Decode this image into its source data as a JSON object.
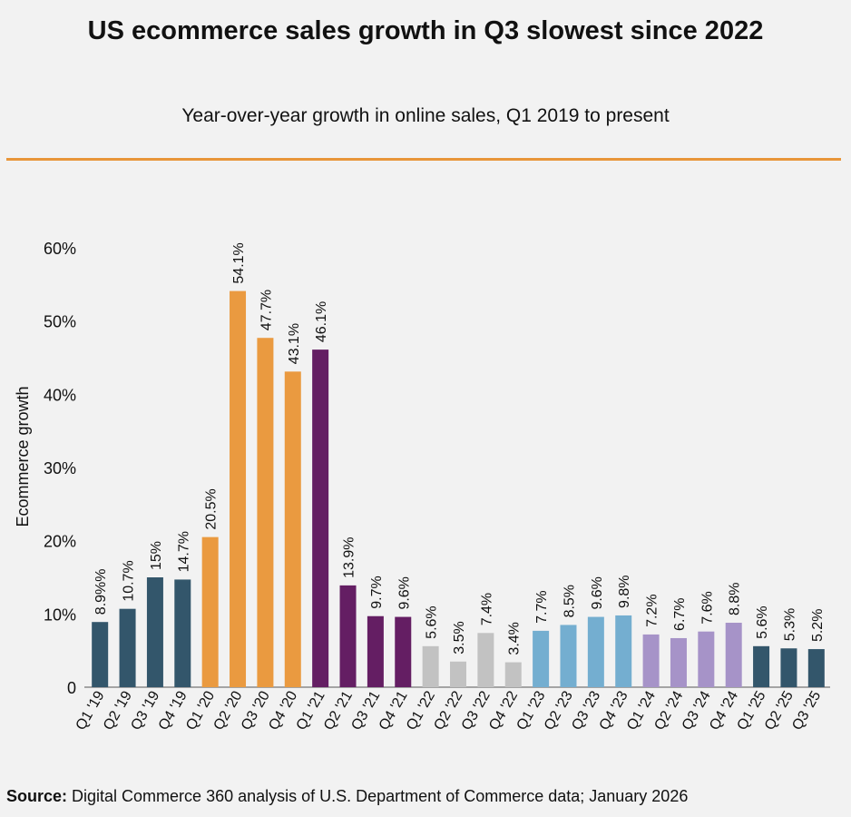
{
  "title": "US ecommerce sales growth in Q3 slowest since 2022",
  "subtitle": "Year-over-year growth in online sales, Q1 2019 to present",
  "source": {
    "label": "Source:",
    "text": " Digital Commerce 360 analysis of U.S. Department of Commerce data; January 2026"
  },
  "colors": {
    "background": "#f2f2f2",
    "accent_rule": "#e8963a",
    "y2019": "#33566b",
    "y2020": "#ea9a40",
    "y2021": "#641e63",
    "y2022": "#c2c2c2",
    "y2023": "#74aed0",
    "y2024": "#a693c8",
    "y2025": "#33566b"
  },
  "chart_data": {
    "type": "bar",
    "title": "US ecommerce sales growth in Q3 slowest since 2022",
    "subtitle": "Year-over-year growth in online sales, Q1 2019 to present",
    "xlabel": "",
    "ylabel": "Ecommerce growth",
    "ylim": [
      0,
      60
    ],
    "yticks": [
      0,
      10,
      20,
      30,
      40,
      50,
      60
    ],
    "ytick_labels": [
      "0",
      "10%",
      "20%",
      "30%",
      "40%",
      "50%",
      "60%"
    ],
    "grid": false,
    "categories": [
      "Q1 '19",
      "Q2 '19",
      "Q3 '19",
      "Q4 '19",
      "Q1 '20",
      "Q2 '20",
      "Q3 '20",
      "Q4 '20",
      "Q1 '21",
      "Q2 '21",
      "Q3 '21",
      "Q4 '21",
      "Q1 '22",
      "Q2 '22",
      "Q3 '22",
      "Q4 '22",
      "Q1 '23",
      "Q2 '23",
      "Q3 '23",
      "Q4 '23",
      "Q1 '24",
      "Q2 '24",
      "Q3 '24",
      "Q4 '24",
      "Q1 '25",
      "Q2 '25",
      "Q3 '25"
    ],
    "values": [
      8.9,
      10.7,
      15,
      14.7,
      20.5,
      54.1,
      47.7,
      43.1,
      46.1,
      13.9,
      9.7,
      9.6,
      5.6,
      3.5,
      7.4,
      3.4,
      7.7,
      8.5,
      9.6,
      9.8,
      7.2,
      6.7,
      7.6,
      8.8,
      5.6,
      5.3,
      5.2
    ],
    "value_labels": [
      "8.9%%",
      "10.7%",
      "15%",
      "14.7%",
      "20.5%",
      "54.1%",
      "47.7%",
      "43.1%",
      "46.1%",
      "13.9%",
      "9.7%",
      "9.6%",
      "5.6%",
      "3.5%",
      "7.4%",
      "3.4%",
      "7.7%",
      "8.5%",
      "9.6%",
      "9.8%",
      "7.2%",
      "6.7%",
      "7.6%",
      "8.8%",
      "5.6%",
      "5.3%",
      "5.2%"
    ],
    "color_keys": [
      "y2019",
      "y2019",
      "y2019",
      "y2019",
      "y2020",
      "y2020",
      "y2020",
      "y2020",
      "y2021",
      "y2021",
      "y2021",
      "y2021",
      "y2022",
      "y2022",
      "y2022",
      "y2022",
      "y2023",
      "y2023",
      "y2023",
      "y2023",
      "y2024",
      "y2024",
      "y2024",
      "y2024",
      "y2025",
      "y2025",
      "y2025"
    ]
  }
}
